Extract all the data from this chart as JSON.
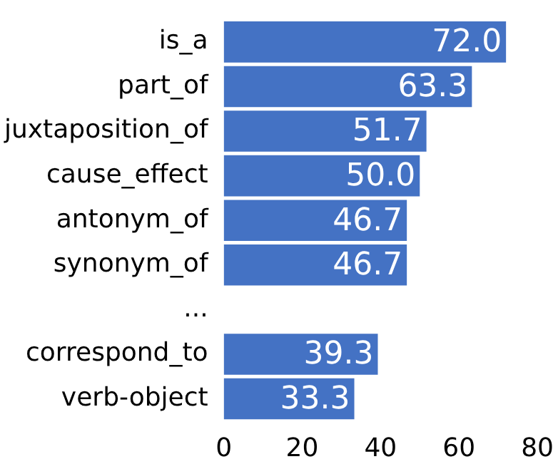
{
  "chart_data": {
    "type": "bar",
    "orientation": "horizontal",
    "categories": [
      "is_a",
      "part_of",
      "juxtaposition_of",
      "cause_effect",
      "antonym_of",
      "synonym_of",
      "...",
      "correspond_to",
      "verb-object"
    ],
    "values": [
      72.0,
      63.3,
      51.7,
      50.0,
      46.7,
      46.7,
      null,
      39.3,
      33.3
    ],
    "value_labels": [
      "72.0",
      "63.3",
      "51.7",
      "50.0",
      "46.7",
      "46.7",
      null,
      "39.3",
      "33.3"
    ],
    "color": "#4472c4",
    "xlim": [
      0,
      80
    ],
    "xticks": [
      0,
      20,
      40,
      60,
      80
    ],
    "grid": false
  }
}
